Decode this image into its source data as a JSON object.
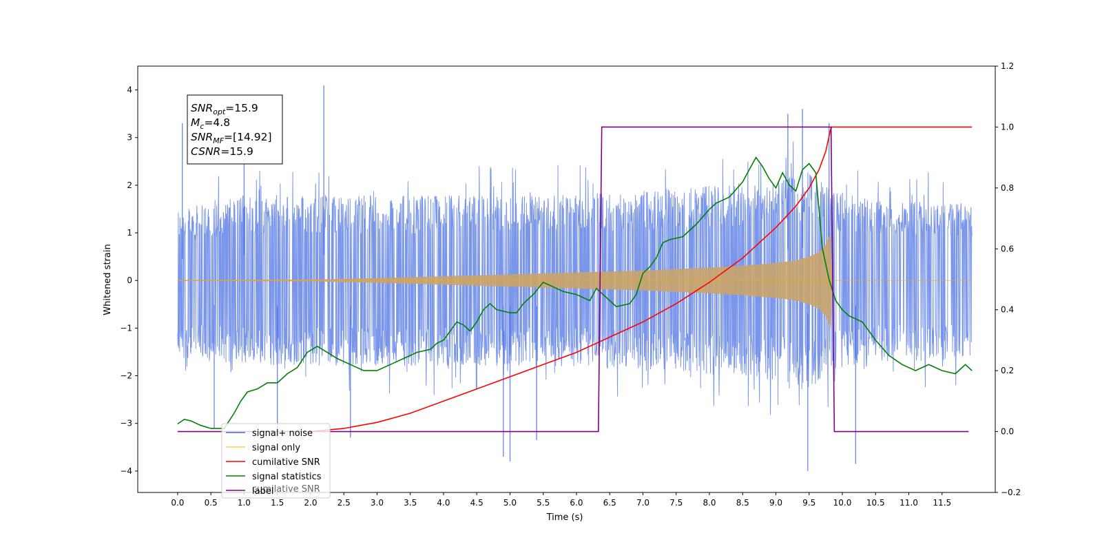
{
  "chart_data": {
    "type": "line",
    "xlabel": "Time (s)",
    "ylabel": "Whitened strain",
    "xlim": [
      -0.6,
      12.3
    ],
    "ylim": [
      -4.45,
      4.5
    ],
    "y2lim": [
      -0.2,
      1.2
    ],
    "x_ticks": [
      0.0,
      0.5,
      1.0,
      1.5,
      2.0,
      2.5,
      3.0,
      3.5,
      4.0,
      4.5,
      5.0,
      5.5,
      6.0,
      6.5,
      7.0,
      7.5,
      8.0,
      8.5,
      9.0,
      9.5,
      10.0,
      10.5,
      11.0,
      11.5
    ],
    "x_tick_labels": [
      "0.0",
      "0.5",
      "1.0",
      "1.5",
      "2.0",
      "2.5",
      "3.0",
      "3.5",
      "4.0",
      "4.5",
      "5.0",
      "5.5",
      "6.0",
      "6.5",
      "7.0",
      "7.5",
      "8.0",
      "8.5",
      "9.0",
      "9.5",
      "10.0",
      "10.5",
      "11.0",
      "11.5"
    ],
    "y_ticks": [
      -4,
      -3,
      -2,
      -1,
      0,
      1,
      2,
      3,
      4
    ],
    "y_tick_labels": [
      "−4",
      "−3",
      "−2",
      "−1",
      "0",
      "1",
      "2",
      "3",
      "4"
    ],
    "y2_ticks": [
      -0.2,
      0.0,
      0.2,
      0.4,
      0.6,
      0.8,
      1.0,
      1.2
    ],
    "y2_tick_labels": [
      "−0.2",
      "0.0",
      "0.2",
      "0.4",
      "0.6",
      "0.8",
      "1.0",
      "1.2"
    ],
    "grid": false,
    "legend_position": "lower-left",
    "series": [
      {
        "name": "signal+ noise",
        "axis": "left",
        "color": "#4169e1",
        "envelope_x": [
          0.0,
          1.0,
          2.0,
          3.0,
          4.0,
          5.0,
          6.0,
          7.0,
          8.0,
          9.0,
          9.5,
          9.85,
          10.5,
          11.0,
          11.5,
          11.95
        ],
        "envelope_upper": [
          1.5,
          1.8,
          1.8,
          1.8,
          1.8,
          1.8,
          1.8,
          1.9,
          2.0,
          2.1,
          2.3,
          1.9,
          1.7,
          1.7,
          1.7,
          1.6
        ],
        "envelope_lower": [
          -1.6,
          -1.8,
          -1.8,
          -1.8,
          -1.8,
          -1.8,
          -1.8,
          -1.9,
          -2.0,
          -2.1,
          -2.3,
          -1.9,
          -1.7,
          -1.7,
          -1.7,
          -1.6
        ],
        "peaks": [
          {
            "x": 0.07,
            "y": 3.3
          },
          {
            "x": 2.2,
            "y": 4.1
          },
          {
            "x": 1.0,
            "y": 3.0
          },
          {
            "x": 9.18,
            "y": 3.5
          },
          {
            "x": 9.4,
            "y": 3.6
          },
          {
            "x": 9.8,
            "y": 3.3
          },
          {
            "x": 9.48,
            "y": -4.0
          },
          {
            "x": 4.9,
            "y": -3.7
          },
          {
            "x": 5.0,
            "y": -3.8
          },
          {
            "x": 10.2,
            "y": -3.85
          },
          {
            "x": 5.4,
            "y": -3.35
          },
          {
            "x": 2.6,
            "y": -3.3
          },
          {
            "x": 0.55,
            "y": -3.1
          },
          {
            "x": 1.5,
            "y": -3.3
          }
        ]
      },
      {
        "name": "signal only",
        "axis": "left",
        "color": "#ffa500",
        "envelope_x": [
          0.0,
          1.0,
          2.0,
          3.0,
          4.0,
          5.0,
          6.0,
          6.5,
          7.0,
          7.5,
          8.0,
          8.5,
          9.0,
          9.3,
          9.5,
          9.65,
          9.75,
          9.82,
          9.85
        ],
        "envelope_amp": [
          0.01,
          0.015,
          0.02,
          0.05,
          0.09,
          0.13,
          0.17,
          0.19,
          0.21,
          0.24,
          0.27,
          0.31,
          0.37,
          0.42,
          0.5,
          0.6,
          0.75,
          1.0,
          0.0
        ]
      },
      {
        "name": "cumilative SNR",
        "axis": "right",
        "color": "#ff0000",
        "x": [
          2.0,
          2.5,
          3.0,
          3.5,
          4.0,
          4.5,
          5.0,
          5.5,
          6.0,
          6.5,
          7.0,
          7.5,
          8.0,
          8.5,
          9.0,
          9.3,
          9.5,
          9.65,
          9.75,
          9.82,
          9.84,
          11.95
        ],
        "y": [
          0.0,
          0.01,
          0.03,
          0.06,
          0.1,
          0.14,
          0.18,
          0.22,
          0.26,
          0.31,
          0.36,
          0.42,
          0.49,
          0.57,
          0.67,
          0.74,
          0.8,
          0.86,
          0.92,
          0.99,
          1.0,
          1.0
        ]
      },
      {
        "name": "signal statistics",
        "axis": "right",
        "color": "#008000",
        "x": [
          0.0,
          0.1,
          0.2,
          0.35,
          0.5,
          0.7,
          0.85,
          0.95,
          1.05,
          1.2,
          1.35,
          1.5,
          1.65,
          1.8,
          1.95,
          2.1,
          2.25,
          2.4,
          2.6,
          2.8,
          3.0,
          3.2,
          3.4,
          3.6,
          3.8,
          3.9,
          4.0,
          4.1,
          4.2,
          4.3,
          4.4,
          4.5,
          4.6,
          4.7,
          4.8,
          5.0,
          5.1,
          5.2,
          5.35,
          5.5,
          5.6,
          5.8,
          6.0,
          6.2,
          6.3,
          6.45,
          6.6,
          6.8,
          6.9,
          7.0,
          7.1,
          7.2,
          7.3,
          7.4,
          7.6,
          7.8,
          8.0,
          8.1,
          8.3,
          8.5,
          8.6,
          8.7,
          8.8,
          8.9,
          9.0,
          9.1,
          9.2,
          9.3,
          9.4,
          9.5,
          9.6,
          9.7,
          9.8,
          9.9,
          10.0,
          10.1,
          10.3,
          10.5,
          10.7,
          10.9,
          11.1,
          11.3,
          11.5,
          11.7,
          11.85,
          11.95
        ],
        "y": [
          0.025,
          0.04,
          0.035,
          0.02,
          0.01,
          0.01,
          0.06,
          0.1,
          0.13,
          0.14,
          0.16,
          0.16,
          0.19,
          0.21,
          0.26,
          0.28,
          0.26,
          0.24,
          0.22,
          0.2,
          0.2,
          0.22,
          0.24,
          0.26,
          0.27,
          0.29,
          0.3,
          0.33,
          0.36,
          0.35,
          0.33,
          0.36,
          0.4,
          0.42,
          0.4,
          0.39,
          0.39,
          0.42,
          0.45,
          0.49,
          0.48,
          0.46,
          0.45,
          0.43,
          0.47,
          0.44,
          0.41,
          0.42,
          0.45,
          0.52,
          0.54,
          0.57,
          0.62,
          0.63,
          0.64,
          0.68,
          0.73,
          0.75,
          0.77,
          0.82,
          0.86,
          0.9,
          0.87,
          0.83,
          0.8,
          0.85,
          0.81,
          0.79,
          0.86,
          0.88,
          0.85,
          0.6,
          0.5,
          0.43,
          0.4,
          0.38,
          0.36,
          0.3,
          0.25,
          0.22,
          0.2,
          0.22,
          0.2,
          0.19,
          0.22,
          0.2
        ]
      },
      {
        "name": "label",
        "axis": "right",
        "color": "#800080",
        "x": [
          0.0,
          6.33,
          6.38,
          9.83,
          9.88,
          11.9
        ],
        "y": [
          0.0,
          0.0,
          1.0,
          1.0,
          0.0,
          0.0
        ]
      }
    ],
    "annotation_box": {
      "lines": [
        {
          "sym": "SNR",
          "sub": "opt",
          "value": "=15.9"
        },
        {
          "sym": "M",
          "sub": "c",
          "value": "=4.8"
        },
        {
          "sym": "SNR",
          "sub": "MF",
          "value": "=[14.92]"
        },
        {
          "sym": "CSNR",
          "sub": "",
          "value": "=15.9"
        }
      ]
    },
    "legend": {
      "entries": [
        "signal+ noise",
        "signal only",
        "cumilative SNR",
        "signal statistics",
        "label"
      ],
      "ghost_text": "cumilative SNR"
    }
  }
}
